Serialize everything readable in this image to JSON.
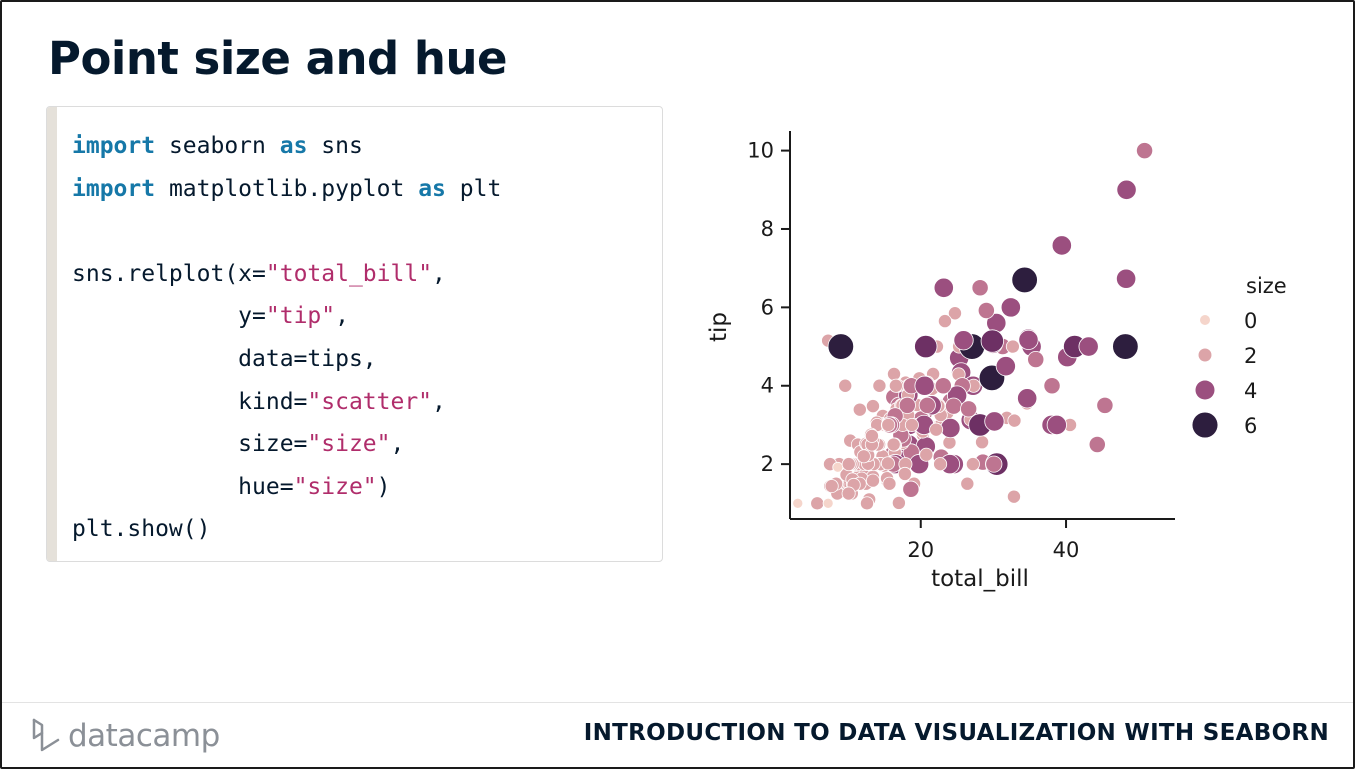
{
  "slide": {
    "title": "Point size and hue",
    "course": "INTRODUCTION TO DATA VISUALIZATION WITH SEABORN",
    "logo_text": "datacamp"
  },
  "code": {
    "lines": [
      [
        {
          "t": "import",
          "c": "kw"
        },
        {
          "t": " seaborn ",
          "c": "plain"
        },
        {
          "t": "as",
          "c": "kw"
        },
        {
          "t": " sns",
          "c": "plain"
        }
      ],
      [
        {
          "t": "import",
          "c": "kw"
        },
        {
          "t": " matplotlib.pyplot ",
          "c": "plain"
        },
        {
          "t": "as",
          "c": "kw"
        },
        {
          "t": " plt",
          "c": "plain"
        }
      ],
      [],
      [
        {
          "t": "sns.relplot(x=",
          "c": "plain"
        },
        {
          "t": "\"total_bill\"",
          "c": "str"
        },
        {
          "t": ",",
          "c": "plain"
        }
      ],
      [
        {
          "t": "            y=",
          "c": "plain"
        },
        {
          "t": "\"tip\"",
          "c": "str"
        },
        {
          "t": ",",
          "c": "plain"
        }
      ],
      [
        {
          "t": "            data=tips,",
          "c": "plain"
        }
      ],
      [
        {
          "t": "            kind=",
          "c": "plain"
        },
        {
          "t": "\"scatter\"",
          "c": "str"
        },
        {
          "t": ",",
          "c": "plain"
        }
      ],
      [
        {
          "t": "            size=",
          "c": "plain"
        },
        {
          "t": "\"size\"",
          "c": "str"
        },
        {
          "t": ",",
          "c": "plain"
        }
      ],
      [
        {
          "t": "            hue=",
          "c": "plain"
        },
        {
          "t": "\"size\"",
          "c": "str"
        },
        {
          "t": ")",
          "c": "plain"
        }
      ],
      [
        {
          "t": "plt.show()",
          "c": "plain"
        }
      ]
    ],
    "colors": {
      "keyword": "#1678a8",
      "string": "#b02d6b",
      "text": "#05192d"
    }
  },
  "chart_data": {
    "type": "scatter",
    "xlabel": "total_bill",
    "ylabel": "tip",
    "xlim": [
      2,
      55
    ],
    "ylim": [
      0.6,
      10.5
    ],
    "xticks": [
      20,
      40
    ],
    "yticks": [
      2,
      4,
      6,
      8,
      10
    ],
    "legend": {
      "title": "size",
      "placement": "right",
      "entries": [
        {
          "label": "0",
          "value": 0
        },
        {
          "label": "2",
          "value": 2
        },
        {
          "label": "4",
          "value": 4
        },
        {
          "label": "6",
          "value": 6
        }
      ]
    },
    "hue_colors": {
      "1": "#f5d5cb",
      "2": "#dca4a8",
      "3": "#be7591",
      "4": "#9b4f7f",
      "5": "#6d3064",
      "6": "#2d1e3e"
    },
    "points": [
      [
        16.99,
        1.01,
        2
      ],
      [
        10.34,
        1.66,
        3
      ],
      [
        21.01,
        3.5,
        3
      ],
      [
        23.68,
        3.31,
        2
      ],
      [
        24.59,
        3.61,
        4
      ],
      [
        25.29,
        4.71,
        4
      ],
      [
        8.77,
        2.0,
        2
      ],
      [
        26.88,
        3.12,
        4
      ],
      [
        15.04,
        1.96,
        2
      ],
      [
        14.78,
        3.23,
        2
      ],
      [
        10.27,
        1.71,
        2
      ],
      [
        35.26,
        5.0,
        4
      ],
      [
        15.42,
        1.57,
        2
      ],
      [
        18.43,
        3.0,
        4
      ],
      [
        14.83,
        3.02,
        2
      ],
      [
        21.58,
        3.92,
        2
      ],
      [
        10.33,
        1.67,
        3
      ],
      [
        16.29,
        3.71,
        3
      ],
      [
        16.97,
        3.5,
        3
      ],
      [
        20.65,
        3.35,
        3
      ],
      [
        17.92,
        4.08,
        2
      ],
      [
        20.29,
        2.75,
        2
      ],
      [
        15.77,
        2.23,
        2
      ],
      [
        39.42,
        7.58,
        4
      ],
      [
        19.82,
        3.18,
        2
      ],
      [
        17.81,
        2.34,
        4
      ],
      [
        13.37,
        2.0,
        2
      ],
      [
        12.69,
        2.0,
        2
      ],
      [
        21.7,
        4.3,
        2
      ],
      [
        19.65,
        3.0,
        2
      ],
      [
        9.55,
        1.45,
        2
      ],
      [
        18.35,
        2.5,
        4
      ],
      [
        15.06,
        3.0,
        2
      ],
      [
        20.69,
        2.45,
        4
      ],
      [
        17.78,
        3.27,
        2
      ],
      [
        24.06,
        3.6,
        3
      ],
      [
        16.31,
        2.0,
        3
      ],
      [
        16.93,
        3.07,
        3
      ],
      [
        18.69,
        2.31,
        3
      ],
      [
        31.27,
        5.0,
        3
      ],
      [
        16.04,
        2.24,
        3
      ],
      [
        17.46,
        2.54,
        2
      ],
      [
        13.94,
        3.06,
        2
      ],
      [
        9.68,
        1.32,
        2
      ],
      [
        30.4,
        5.6,
        4
      ],
      [
        18.29,
        3.0,
        2
      ],
      [
        22.23,
        5.0,
        2
      ],
      [
        32.4,
        6.0,
        4
      ],
      [
        28.55,
        2.05,
        3
      ],
      [
        18.04,
        3.0,
        2
      ],
      [
        12.54,
        2.5,
        2
      ],
      [
        10.29,
        2.6,
        2
      ],
      [
        34.81,
        5.2,
        4
      ],
      [
        9.94,
        1.56,
        2
      ],
      [
        25.56,
        4.34,
        4
      ],
      [
        19.49,
        3.51,
        2
      ],
      [
        38.01,
        3.0,
        4
      ],
      [
        26.41,
        1.5,
        2
      ],
      [
        11.24,
        1.76,
        2
      ],
      [
        48.27,
        6.73,
        4
      ],
      [
        20.29,
        3.21,
        2
      ],
      [
        13.81,
        2.0,
        2
      ],
      [
        11.02,
        1.98,
        2
      ],
      [
        18.29,
        3.76,
        4
      ],
      [
        17.59,
        2.64,
        3
      ],
      [
        20.08,
        3.15,
        3
      ],
      [
        16.45,
        2.47,
        2
      ],
      [
        3.07,
        1.0,
        1
      ],
      [
        20.23,
        2.01,
        2
      ],
      [
        15.01,
        2.09,
        2
      ],
      [
        12.02,
        1.97,
        2
      ],
      [
        17.07,
        3.0,
        3
      ],
      [
        26.86,
        3.14,
        2
      ],
      [
        25.28,
        5.0,
        2
      ],
      [
        14.73,
        2.2,
        2
      ],
      [
        10.51,
        1.25,
        2
      ],
      [
        17.92,
        3.08,
        2
      ],
      [
        27.2,
        4.0,
        4
      ],
      [
        22.76,
        3.0,
        2
      ],
      [
        17.29,
        2.71,
        2
      ],
      [
        19.44,
        3.0,
        2
      ],
      [
        16.66,
        3.4,
        2
      ],
      [
        10.07,
        1.83,
        1
      ],
      [
        32.68,
        5.0,
        2
      ],
      [
        15.98,
        2.03,
        2
      ],
      [
        34.83,
        5.17,
        4
      ],
      [
        13.03,
        2.0,
        2
      ],
      [
        18.28,
        4.0,
        2
      ],
      [
        24.71,
        5.85,
        2
      ],
      [
        21.16,
        3.0,
        2
      ],
      [
        28.97,
        3.0,
        2
      ],
      [
        22.49,
        3.5,
        2
      ],
      [
        5.75,
        1.0,
        2
      ],
      [
        16.32,
        4.3,
        2
      ],
      [
        22.75,
        3.25,
        2
      ],
      [
        40.17,
        4.73,
        4
      ],
      [
        27.28,
        4.0,
        2
      ],
      [
        12.03,
        1.5,
        2
      ],
      [
        21.01,
        3.0,
        2
      ],
      [
        12.46,
        1.5,
        2
      ],
      [
        11.35,
        2.5,
        2
      ],
      [
        15.38,
        3.0,
        2
      ],
      [
        44.3,
        2.5,
        3
      ],
      [
        22.42,
        3.48,
        2
      ],
      [
        20.92,
        4.08,
        2
      ],
      [
        15.36,
        1.64,
        2
      ],
      [
        20.49,
        4.06,
        2
      ],
      [
        25.21,
        4.29,
        2
      ],
      [
        18.24,
        3.76,
        2
      ],
      [
        14.31,
        4.0,
        2
      ],
      [
        14.0,
        3.0,
        2
      ],
      [
        7.25,
        1.0,
        1
      ],
      [
        38.07,
        4.0,
        3
      ],
      [
        23.95,
        2.55,
        2
      ],
      [
        25.71,
        4.0,
        3
      ],
      [
        17.31,
        3.5,
        2
      ],
      [
        29.93,
        5.07,
        4
      ],
      [
        10.65,
        1.5,
        2
      ],
      [
        12.43,
        1.8,
        2
      ],
      [
        24.08,
        2.92,
        4
      ],
      [
        11.69,
        2.31,
        2
      ],
      [
        13.42,
        1.68,
        2
      ],
      [
        14.26,
        2.5,
        2
      ],
      [
        15.95,
        2.0,
        2
      ],
      [
        12.48,
        2.52,
        2
      ],
      [
        29.8,
        4.2,
        6
      ],
      [
        8.52,
        1.48,
        2
      ],
      [
        14.52,
        2.0,
        2
      ],
      [
        11.38,
        2.0,
        2
      ],
      [
        22.82,
        2.18,
        3
      ],
      [
        19.08,
        1.5,
        2
      ],
      [
        20.27,
        2.83,
        2
      ],
      [
        11.17,
        1.5,
        2
      ],
      [
        12.26,
        2.0,
        2
      ],
      [
        18.26,
        3.25,
        2
      ],
      [
        8.51,
        1.25,
        2
      ],
      [
        10.33,
        2.0,
        2
      ],
      [
        14.15,
        2.0,
        2
      ],
      [
        16.0,
        2.0,
        2
      ],
      [
        13.16,
        2.75,
        2
      ],
      [
        17.47,
        3.5,
        2
      ],
      [
        34.3,
        6.7,
        6
      ],
      [
        41.19,
        5.0,
        5
      ],
      [
        27.05,
        5.0,
        6
      ],
      [
        16.43,
        2.3,
        2
      ],
      [
        8.35,
        1.5,
        2
      ],
      [
        18.64,
        1.36,
        3
      ],
      [
        11.87,
        1.63,
        2
      ],
      [
        9.78,
        1.73,
        2
      ],
      [
        7.51,
        2.0,
        2
      ],
      [
        14.07,
        2.5,
        2
      ],
      [
        13.13,
        2.0,
        2
      ],
      [
        17.26,
        2.74,
        3
      ],
      [
        24.55,
        2.0,
        4
      ],
      [
        19.77,
        2.0,
        4
      ],
      [
        29.85,
        5.14,
        5
      ],
      [
        48.17,
        5.0,
        6
      ],
      [
        25.0,
        3.75,
        4
      ],
      [
        13.39,
        2.61,
        2
      ],
      [
        16.49,
        2.0,
        4
      ],
      [
        21.5,
        3.5,
        4
      ],
      [
        12.66,
        2.5,
        2
      ],
      [
        16.21,
        2.0,
        3
      ],
      [
        13.81,
        2.0,
        2
      ],
      [
        17.51,
        3.0,
        2
      ],
      [
        24.52,
        3.48,
        3
      ],
      [
        20.76,
        2.24,
        2
      ],
      [
        31.71,
        4.5,
        4
      ],
      [
        10.59,
        1.61,
        2
      ],
      [
        10.63,
        2.0,
        2
      ],
      [
        50.81,
        10.0,
        3
      ],
      [
        15.81,
        3.16,
        2
      ],
      [
        7.25,
        5.15,
        2
      ],
      [
        31.85,
        3.18,
        2
      ],
      [
        16.82,
        4.0,
        2
      ],
      [
        32.9,
        3.11,
        2
      ],
      [
        17.89,
        2.0,
        2
      ],
      [
        14.48,
        2.0,
        2
      ],
      [
        9.6,
        4.0,
        2
      ],
      [
        34.63,
        3.55,
        2
      ],
      [
        34.65,
        3.68,
        4
      ],
      [
        23.33,
        5.65,
        2
      ],
      [
        45.35,
        3.5,
        3
      ],
      [
        23.17,
        6.5,
        4
      ],
      [
        40.55,
        3.0,
        2
      ],
      [
        20.69,
        5.0,
        5
      ],
      [
        20.9,
        3.5,
        3
      ],
      [
        30.46,
        2.0,
        5
      ],
      [
        18.15,
        3.5,
        3
      ],
      [
        23.1,
        4.0,
        3
      ],
      [
        15.69,
        1.5,
        2
      ],
      [
        19.81,
        4.19,
        2
      ],
      [
        28.44,
        2.56,
        2
      ],
      [
        15.48,
        2.02,
        2
      ],
      [
        16.58,
        4.0,
        2
      ],
      [
        7.56,
        1.44,
        2
      ],
      [
        10.34,
        2.0,
        2
      ],
      [
        43.11,
        5.0,
        4
      ],
      [
        13.0,
        2.0,
        2
      ],
      [
        13.51,
        2.0,
        2
      ],
      [
        18.71,
        4.0,
        3
      ],
      [
        12.74,
        2.01,
        2
      ],
      [
        16.4,
        2.5,
        2
      ],
      [
        20.53,
        4.0,
        4
      ],
      [
        16.47,
        3.23,
        3
      ],
      [
        26.59,
        3.41,
        3
      ],
      [
        38.73,
        3.0,
        4
      ],
      [
        24.27,
        2.03,
        2
      ],
      [
        12.76,
        2.23,
        2
      ],
      [
        30.06,
        2.0,
        3
      ],
      [
        25.89,
        5.16,
        4
      ],
      [
        48.33,
        9.0,
        4
      ],
      [
        13.27,
        2.5,
        2
      ],
      [
        28.17,
        6.5,
        3
      ],
      [
        12.9,
        1.1,
        2
      ],
      [
        28.15,
        3.0,
        5
      ],
      [
        11.59,
        1.5,
        2
      ],
      [
        7.74,
        1.44,
        2
      ],
      [
        30.14,
        3.09,
        4
      ],
      [
        12.16,
        2.2,
        2
      ],
      [
        13.42,
        3.48,
        2
      ],
      [
        8.58,
        1.92,
        1
      ],
      [
        15.98,
        3.0,
        3
      ],
      [
        13.42,
        1.58,
        2
      ],
      [
        16.27,
        2.5,
        2
      ],
      [
        10.09,
        2.0,
        2
      ],
      [
        20.45,
        3.0,
        4
      ],
      [
        13.28,
        2.72,
        2
      ],
      [
        22.12,
        2.88,
        2
      ],
      [
        24.01,
        2.0,
        4
      ],
      [
        15.69,
        3.0,
        3
      ],
      [
        11.61,
        3.39,
        2
      ],
      [
        10.77,
        1.47,
        2
      ],
      [
        15.53,
        3.0,
        2
      ],
      [
        10.07,
        1.25,
        2
      ],
      [
        12.6,
        1.0,
        2
      ],
      [
        32.83,
        1.17,
        2
      ],
      [
        35.83,
        4.67,
        3
      ],
      [
        29.03,
        5.92,
        3
      ],
      [
        27.18,
        2.0,
        2
      ],
      [
        22.67,
        2.0,
        2
      ],
      [
        17.82,
        1.75,
        2
      ],
      [
        18.78,
        3.0,
        2
      ],
      [
        9.0,
        5.0,
        6
      ]
    ]
  }
}
